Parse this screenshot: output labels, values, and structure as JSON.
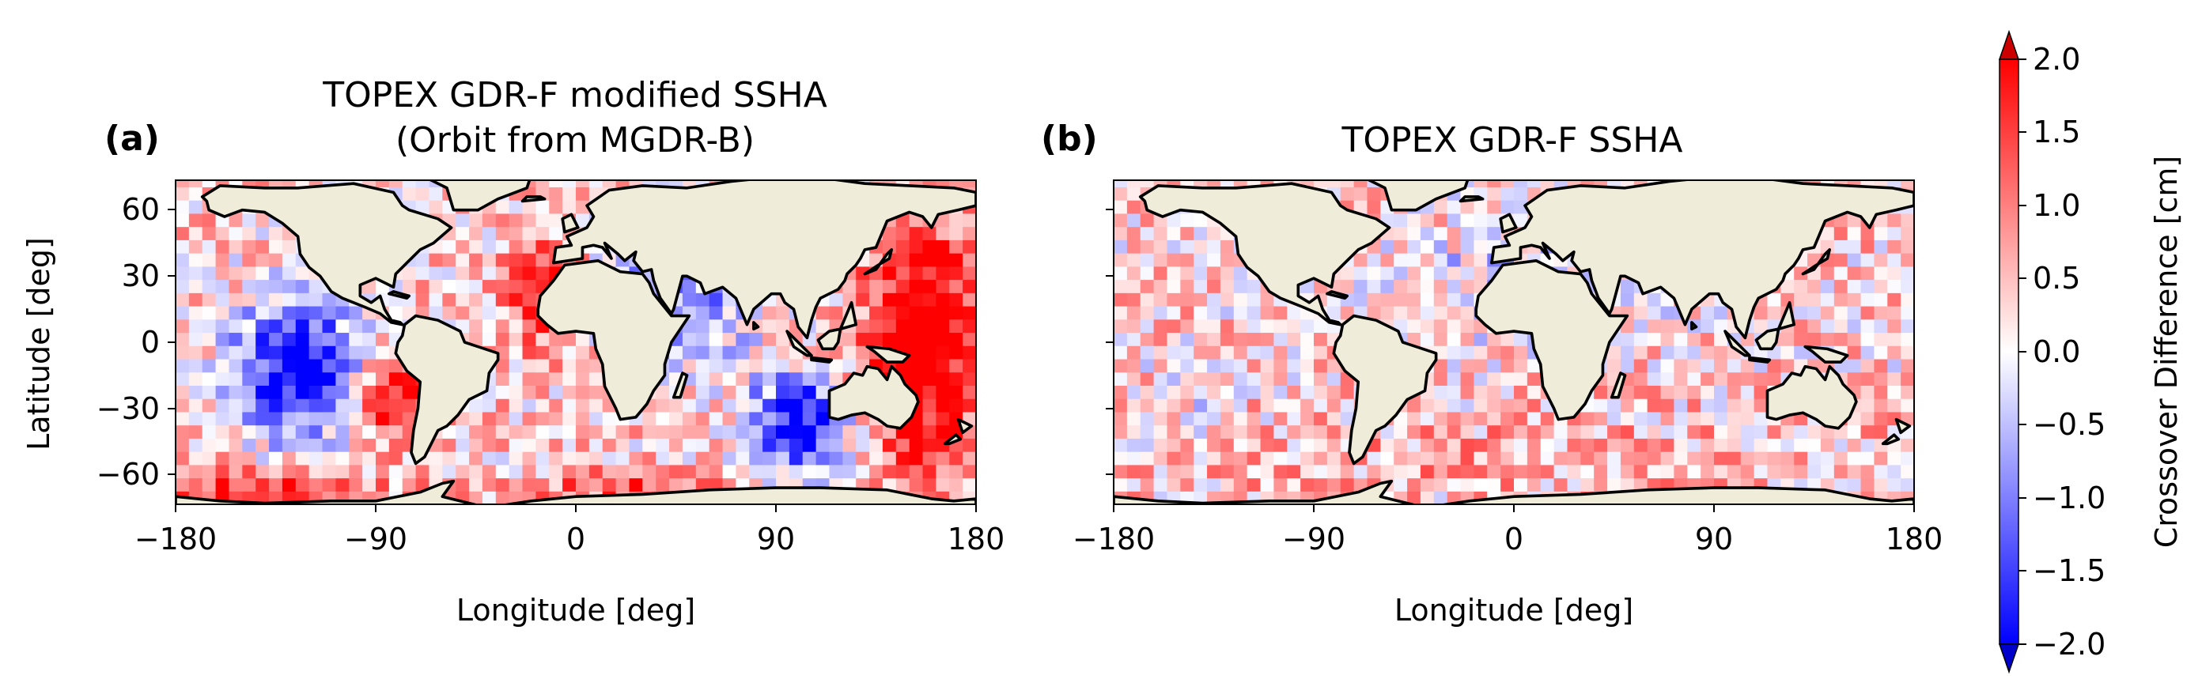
{
  "chart_data": [
    {
      "type": "heatmap",
      "panel_label": "(a)",
      "title_line1": "TOPEX GDR-F modified SSHA",
      "title_line2": "(Orbit from MGDR-B)",
      "xlabel": "Longitude [deg]",
      "ylabel": "Latitude [deg]",
      "xlim": [
        -180,
        180
      ],
      "ylim": [
        -72,
        75
      ],
      "xticks": [
        "−180",
        "−90",
        "0",
        "90",
        "180"
      ],
      "yticks": [
        "60",
        "30",
        "0",
        "−30",
        "−60"
      ],
      "grid_resolution_deg": 6,
      "pattern": "large-scale: negative (blue) over western Indian Ocean and SE Pacific near 90E, positive (red) over Atlantic, western Pacific and Southern Ocean"
    },
    {
      "type": "heatmap",
      "panel_label": "(b)",
      "title_line1": "TOPEX GDR-F SSHA",
      "xlabel": "Longitude [deg]",
      "ylabel": "",
      "xlim": [
        -180,
        180
      ],
      "ylim": [
        -72,
        75
      ],
      "xticks": [
        "−180",
        "−90",
        "0",
        "90",
        "180"
      ],
      "grid_resolution_deg": 6,
      "pattern": "mostly small values, mild positive (light red) in southern hemisphere, mild negative (light blue) in North Pacific"
    }
  ],
  "colorbar": {
    "label": "Crossover Difference [cm]",
    "min": -2.0,
    "max": 2.0,
    "extend": "both",
    "ticks": [
      "2.0",
      "1.5",
      "1.0",
      "0.5",
      "0.0",
      "−0.5",
      "−1.0",
      "−1.5",
      "−2.0"
    ],
    "colormap": "bwr",
    "colors": {
      "low": "#0000ff",
      "mid": "#ffffff",
      "high": "#ff0000",
      "land": "#efedd9"
    }
  }
}
